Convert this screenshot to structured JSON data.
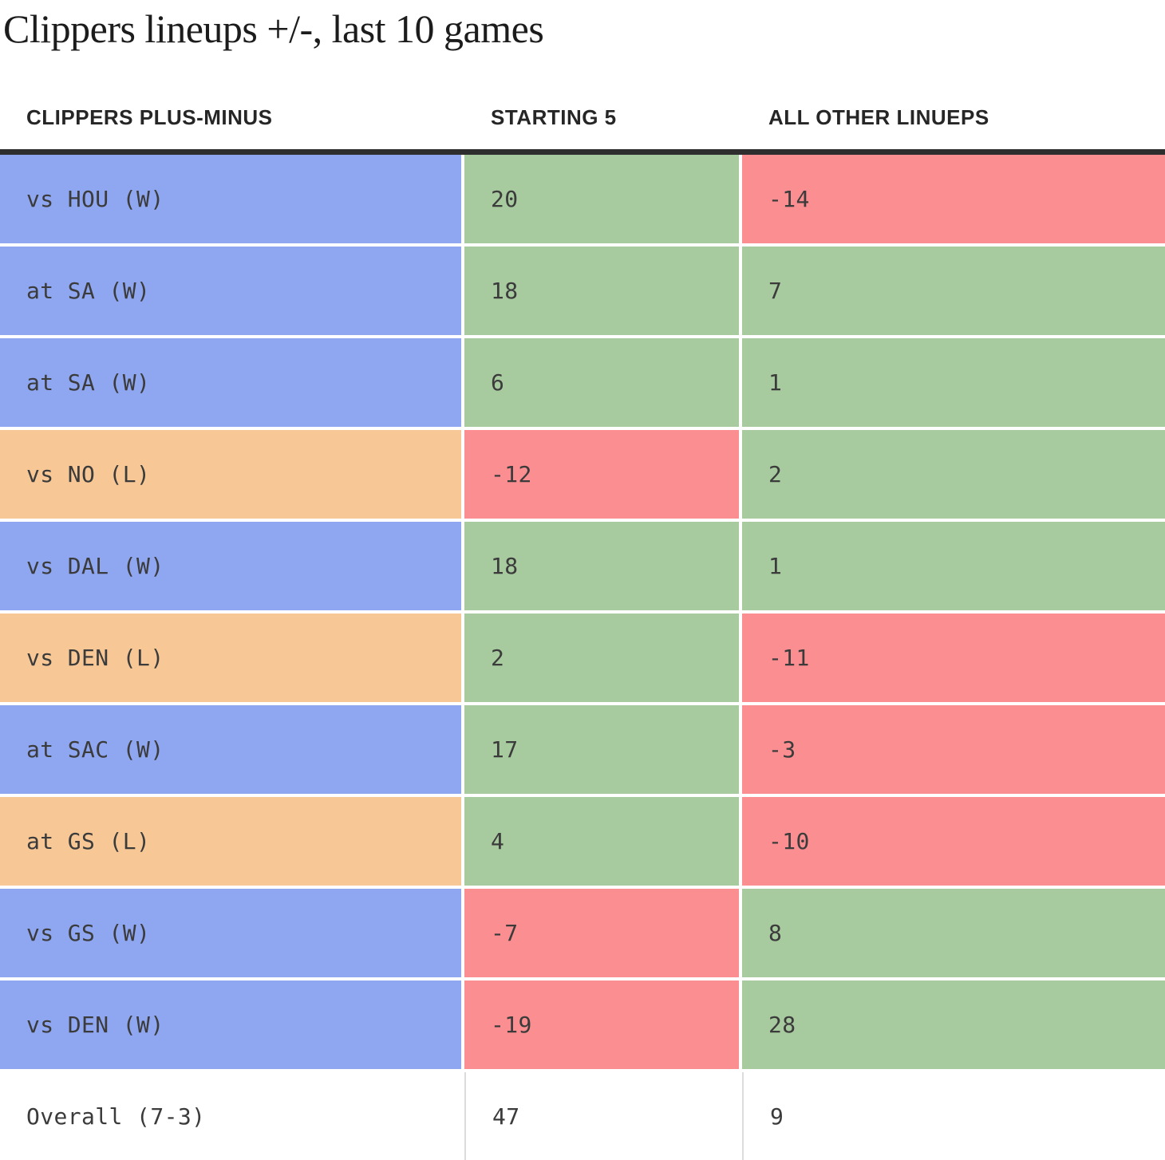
{
  "title": "Clippers lineups +/-, last 10 games",
  "table": {
    "columns": [
      "CLIPPERS PLUS-MINUS",
      "STARTING 5",
      "ALL OTHER LINUEPS"
    ],
    "rows": [
      {
        "opponent": "vs HOU (W)",
        "opponent_color": "blue",
        "starting5": "20",
        "starting5_color": "green",
        "other": "-14",
        "other_color": "red",
        "is_total": false
      },
      {
        "opponent": "at SA (W)",
        "opponent_color": "blue",
        "starting5": "18",
        "starting5_color": "green",
        "other": "7",
        "other_color": "green",
        "is_total": false
      },
      {
        "opponent": "at SA (W)",
        "opponent_color": "blue",
        "starting5": "6",
        "starting5_color": "green",
        "other": "1",
        "other_color": "green",
        "is_total": false
      },
      {
        "opponent": "vs NO (L)",
        "opponent_color": "orange",
        "starting5": "-12",
        "starting5_color": "red",
        "other": "2",
        "other_color": "green",
        "is_total": false
      },
      {
        "opponent": "vs DAL (W)",
        "opponent_color": "blue",
        "starting5": "18",
        "starting5_color": "green",
        "other": "1",
        "other_color": "green",
        "is_total": false
      },
      {
        "opponent": "vs DEN (L)",
        "opponent_color": "orange",
        "starting5": "2",
        "starting5_color": "green",
        "other": "-11",
        "other_color": "red",
        "is_total": false
      },
      {
        "opponent": "at SAC (W)",
        "opponent_color": "blue",
        "starting5": "17",
        "starting5_color": "green",
        "other": "-3",
        "other_color": "red",
        "is_total": false
      },
      {
        "opponent": "at GS (L)",
        "opponent_color": "orange",
        "starting5": "4",
        "starting5_color": "green",
        "other": "-10",
        "other_color": "red",
        "is_total": false
      },
      {
        "opponent": "vs GS (W)",
        "opponent_color": "blue",
        "starting5": "-7",
        "starting5_color": "red",
        "other": "8",
        "other_color": "green",
        "is_total": false
      },
      {
        "opponent": "vs DEN (W)",
        "opponent_color": "blue",
        "starting5": "-19",
        "starting5_color": "red",
        "other": "28",
        "other_color": "green",
        "is_total": false
      },
      {
        "opponent": "Overall (7-3)",
        "opponent_color": "white",
        "starting5": "47",
        "starting5_color": "white",
        "other": "9",
        "other_color": "white",
        "is_total": true
      }
    ]
  },
  "colors": {
    "blue": "#8fa7f1",
    "orange": "#f7c896",
    "green": "#a7ca9e",
    "red": "#fa8e90",
    "white": "#ffffff",
    "divider_dark": "#2e2e2e"
  },
  "chart_data": {
    "type": "table",
    "title": "Clippers lineups +/-, last 10 games",
    "columns": [
      "CLIPPERS PLUS-MINUS",
      "STARTING 5",
      "ALL OTHER LINUEPS"
    ],
    "rows": [
      [
        "vs HOU (W)",
        20,
        -14
      ],
      [
        "at SA (W)",
        18,
        7
      ],
      [
        "at SA (W)",
        6,
        1
      ],
      [
        "vs NO (L)",
        -12,
        2
      ],
      [
        "vs DAL (W)",
        18,
        1
      ],
      [
        "vs DEN (L)",
        2,
        -11
      ],
      [
        "at SAC (W)",
        17,
        -3
      ],
      [
        "at GS (L)",
        4,
        -10
      ],
      [
        "vs GS (W)",
        -7,
        8
      ],
      [
        "vs DEN (W)",
        -19,
        28
      ],
      [
        "Overall (7-3)",
        47,
        9
      ]
    ],
    "layout_hints": {
      "row_label_color_win": "blue",
      "row_label_color_loss": "orange",
      "value_color_positive": "green",
      "value_color_negative": "red",
      "total_row_background": "white"
    }
  }
}
